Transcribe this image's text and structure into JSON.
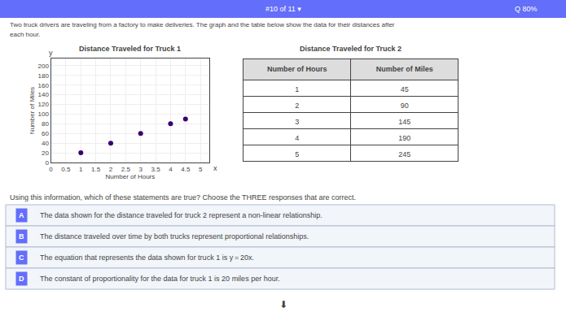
{
  "chart_data": [
    {
      "type": "scatter",
      "title": "Distance Traveled for Truck 1",
      "xlabel": "Number of Hours",
      "ylabel": "Number of Miles",
      "x": [
        1,
        2,
        3,
        4,
        4.5
      ],
      "values": [
        20,
        40,
        60,
        80,
        90
      ],
      "color": "#3a006f",
      "xlim": [
        0,
        5.3
      ],
      "ylim": [
        0,
        215
      ],
      "xticks": [
        0,
        0.5,
        1,
        1.5,
        2,
        2.5,
        3,
        3.5,
        4,
        4.5,
        5
      ],
      "yticks": [
        0,
        20,
        40,
        60,
        80,
        100,
        120,
        140,
        160,
        180,
        200
      ],
      "grid": true,
      "annotations": [
        "y",
        "x"
      ]
    },
    {
      "type": "table",
      "title": "Distance Traveled for Truck 2",
      "columns": [
        "Number of Hours",
        "Number of Miles"
      ],
      "rows": [
        [
          1,
          45
        ],
        [
          2,
          90
        ],
        [
          3,
          145
        ],
        [
          4,
          190
        ],
        [
          5,
          245
        ]
      ]
    }
  ],
  "page": {
    "top_bar": [
      "#10 of 11 ▾",
      "Q 80%"
    ],
    "header": [
      "Two truck drivers are traveling from a factory to make deliveries. The graph and the table below show the data for their distances after",
      "each hour."
    ],
    "question": "Using this information, which of these statements are true? Choose the THREE responses that are correct.",
    "answers": [
      {
        "letter": "A",
        "text": "The data shown for the distance traveled for truck 2 represent a non-linear relationship."
      },
      {
        "letter": "B",
        "text": "The distance traveled over time by both trucks represent proportional relationships."
      },
      {
        "letter": "C",
        "text": "The equation that represents the data shown for truck 1 is y = 20x."
      },
      {
        "letter": "D",
        "text": "The constant of proportionality for the data for truck 1 is 20 miles per hour."
      }
    ],
    "annotations": [
      "⬇"
    ]
  }
}
